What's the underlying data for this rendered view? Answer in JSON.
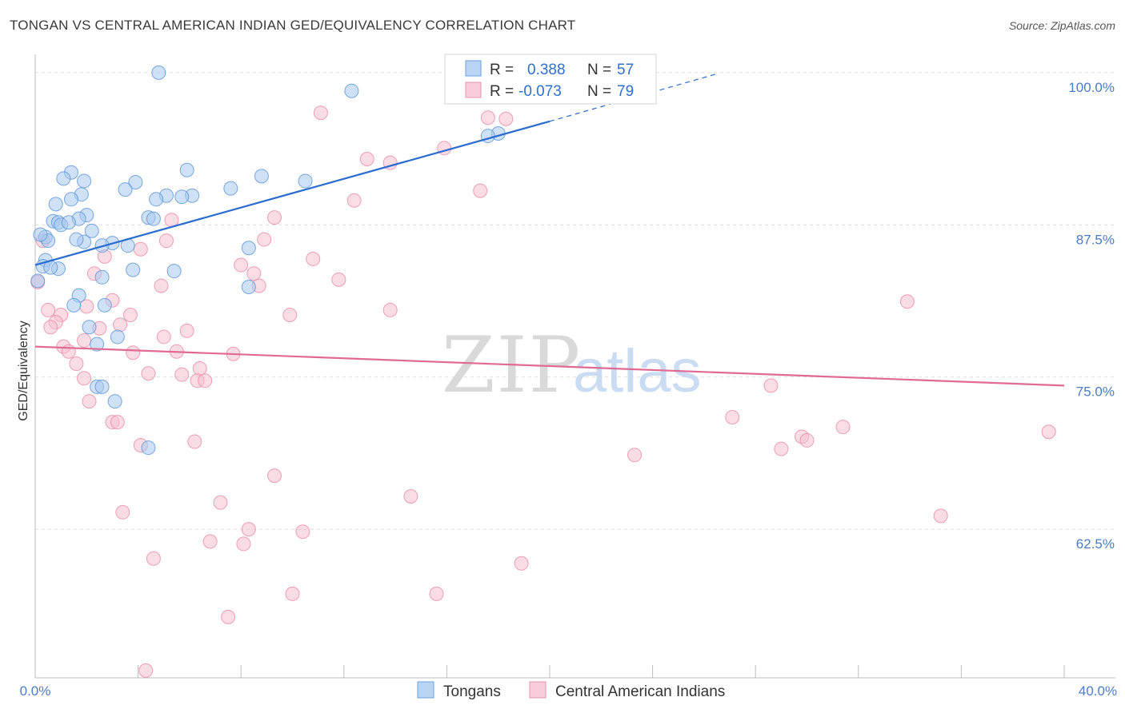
{
  "header": {
    "title": "TONGAN VS CENTRAL AMERICAN INDIAN GED/EQUIVALENCY CORRELATION CHART",
    "source": "Source: ZipAtlas.com"
  },
  "legend_top": {
    "r_label": "R =",
    "n_label": "N =",
    "rows": [
      {
        "r": "0.388",
        "n": "57"
      },
      {
        "r": "-0.073",
        "n": "79"
      }
    ]
  },
  "watermark": {
    "zip": "ZIP",
    "atlas": "atlas"
  },
  "colors": {
    "tongan_fill": "#a8c8f0",
    "tongan_stroke": "#5b93d8",
    "tongan_line": "#2a6ccf",
    "cai_fill": "#f6c0d0",
    "cai_stroke": "#e98aa8",
    "cai_line": "#e06a93",
    "tick_text": "#4a7cc7",
    "grid": "#dcdcdc"
  },
  "chart_data": {
    "type": "scatter",
    "title": "TONGAN VS CENTRAL AMERICAN INDIAN GED/EQUIVALENCY CORRELATION CHART",
    "xlabel": "",
    "ylabel": "GED/Equivalency",
    "xlim": [
      0,
      40
    ],
    "ylim": [
      50.3,
      101.5
    ],
    "x_ticks": [
      "0.0%",
      "40.0%"
    ],
    "y_ticks": [
      {
        "value": 100.0,
        "label": "100.0%"
      },
      {
        "value": 87.5,
        "label": "87.5%"
      },
      {
        "value": 75.0,
        "label": "75.0%"
      },
      {
        "value": 62.5,
        "label": "62.5%"
      }
    ],
    "grid": true,
    "legend_position": "top-center and bottom",
    "series": [
      {
        "name": "Tongans",
        "r": 0.388,
        "n": 57,
        "trend": {
          "x0": 0,
          "y0": 84.2,
          "x1": 20,
          "y1": 96.0,
          "dashed_to_x": 26.5,
          "dashed_to_y": 99.9
        },
        "points": [
          [
            4.8,
            100.0
          ],
          [
            12.3,
            98.5
          ],
          [
            18.0,
            95.0
          ],
          [
            17.6,
            94.8
          ],
          [
            1.4,
            91.8
          ],
          [
            1.1,
            91.3
          ],
          [
            1.9,
            91.1
          ],
          [
            5.9,
            92.0
          ],
          [
            8.8,
            91.5
          ],
          [
            10.5,
            91.1
          ],
          [
            3.9,
            91.0
          ],
          [
            3.5,
            90.4
          ],
          [
            7.6,
            90.5
          ],
          [
            1.8,
            90.0
          ],
          [
            5.1,
            89.9
          ],
          [
            6.1,
            89.9
          ],
          [
            5.7,
            89.8
          ],
          [
            1.4,
            89.6
          ],
          [
            4.7,
            89.6
          ],
          [
            0.8,
            89.2
          ],
          [
            2.0,
            88.3
          ],
          [
            1.7,
            88.0
          ],
          [
            4.4,
            88.1
          ],
          [
            4.6,
            88.0
          ],
          [
            0.7,
            87.8
          ],
          [
            0.9,
            87.7
          ],
          [
            1.0,
            87.5
          ],
          [
            2.2,
            87.0
          ],
          [
            0.4,
            86.5
          ],
          [
            0.5,
            86.2
          ],
          [
            1.9,
            86.1
          ],
          [
            1.6,
            86.3
          ],
          [
            3.0,
            86.0
          ],
          [
            2.6,
            85.8
          ],
          [
            3.6,
            85.8
          ],
          [
            8.3,
            85.6
          ],
          [
            0.4,
            84.6
          ],
          [
            0.3,
            84.1
          ],
          [
            0.9,
            83.9
          ],
          [
            3.8,
            83.8
          ],
          [
            5.4,
            83.7
          ],
          [
            2.6,
            83.2
          ],
          [
            0.1,
            82.9
          ],
          [
            8.3,
            82.4
          ],
          [
            1.7,
            81.7
          ],
          [
            1.5,
            80.9
          ],
          [
            2.7,
            80.9
          ],
          [
            2.1,
            79.1
          ],
          [
            3.2,
            78.3
          ],
          [
            2.4,
            77.7
          ],
          [
            2.4,
            74.2
          ],
          [
            2.6,
            74.2
          ],
          [
            3.1,
            73.0
          ],
          [
            4.4,
            69.2
          ],
          [
            0.2,
            86.7
          ],
          [
            0.6,
            84.0
          ],
          [
            1.3,
            87.7
          ]
        ]
      },
      {
        "name": "Central American Indians",
        "r": -0.073,
        "n": 79,
        "trend": {
          "x0": 0,
          "y0": 77.5,
          "x1": 40,
          "y1": 74.3
        },
        "points": [
          [
            22.7,
            100.0
          ],
          [
            11.1,
            96.7
          ],
          [
            17.6,
            96.3
          ],
          [
            18.3,
            96.2
          ],
          [
            15.9,
            93.8
          ],
          [
            12.9,
            92.9
          ],
          [
            13.8,
            92.6
          ],
          [
            17.3,
            90.3
          ],
          [
            12.4,
            89.5
          ],
          [
            9.3,
            88.1
          ],
          [
            5.3,
            87.9
          ],
          [
            8.9,
            86.3
          ],
          [
            5.1,
            86.2
          ],
          [
            0.3,
            86.2
          ],
          [
            4.1,
            85.5
          ],
          [
            10.8,
            84.7
          ],
          [
            8.0,
            84.2
          ],
          [
            8.5,
            83.5
          ],
          [
            2.3,
            83.5
          ],
          [
            2.7,
            84.9
          ],
          [
            11.8,
            83.0
          ],
          [
            4.9,
            82.5
          ],
          [
            8.7,
            82.5
          ],
          [
            0.1,
            82.8
          ],
          [
            3.0,
            81.3
          ],
          [
            2.0,
            80.8
          ],
          [
            33.9,
            81.2
          ],
          [
            13.8,
            80.5
          ],
          [
            0.5,
            80.5
          ],
          [
            1.0,
            80.1
          ],
          [
            3.7,
            80.1
          ],
          [
            9.9,
            80.1
          ],
          [
            0.8,
            79.5
          ],
          [
            0.6,
            79.1
          ],
          [
            2.5,
            79.0
          ],
          [
            3.3,
            79.3
          ],
          [
            5.9,
            78.8
          ],
          [
            1.9,
            78.0
          ],
          [
            5.0,
            78.3
          ],
          [
            1.1,
            77.5
          ],
          [
            1.3,
            77.1
          ],
          [
            3.8,
            77.0
          ],
          [
            5.5,
            77.1
          ],
          [
            7.7,
            76.9
          ],
          [
            1.6,
            76.1
          ],
          [
            6.4,
            75.7
          ],
          [
            4.4,
            75.3
          ],
          [
            5.7,
            75.2
          ],
          [
            1.9,
            74.9
          ],
          [
            6.3,
            74.7
          ],
          [
            6.6,
            74.7
          ],
          [
            28.6,
            74.3
          ],
          [
            2.1,
            73.0
          ],
          [
            27.1,
            71.7
          ],
          [
            31.4,
            70.9
          ],
          [
            3.0,
            71.3
          ],
          [
            3.2,
            71.3
          ],
          [
            29.8,
            70.1
          ],
          [
            30.0,
            69.8
          ],
          [
            39.4,
            70.5
          ],
          [
            4.1,
            69.4
          ],
          [
            6.2,
            69.7
          ],
          [
            29.0,
            69.1
          ],
          [
            23.3,
            68.6
          ],
          [
            9.3,
            66.9
          ],
          [
            14.6,
            65.2
          ],
          [
            7.2,
            64.7
          ],
          [
            3.4,
            63.9
          ],
          [
            35.2,
            63.6
          ],
          [
            8.3,
            62.5
          ],
          [
            10.4,
            62.3
          ],
          [
            6.8,
            61.5
          ],
          [
            8.1,
            61.3
          ],
          [
            4.6,
            60.1
          ],
          [
            18.9,
            59.7
          ],
          [
            10.0,
            57.2
          ],
          [
            15.6,
            57.2
          ],
          [
            7.5,
            55.3
          ],
          [
            4.3,
            50.9
          ]
        ]
      }
    ]
  }
}
